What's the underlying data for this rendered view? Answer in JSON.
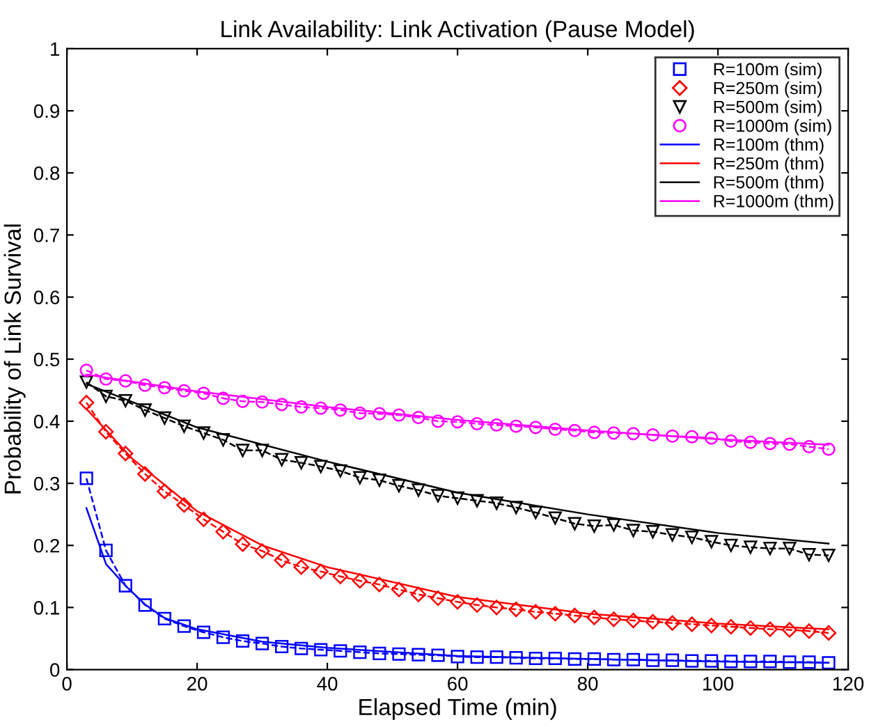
{
  "chart_data": {
    "type": "line",
    "title": "Link Availability: Link Activation (Pause Model)",
    "xlabel": "Elapsed Time (min)",
    "ylabel": "Probability of Link Survival",
    "xlim": [
      0,
      120
    ],
    "xticks": [
      0,
      20,
      40,
      60,
      80,
      100,
      120
    ],
    "ylim": [
      0,
      1
    ],
    "yticks": [
      0,
      0.1,
      0.2,
      0.3,
      0.4,
      0.5,
      0.6,
      0.7,
      0.8,
      0.9,
      1
    ],
    "grid": false,
    "legend": "top right",
    "series": [
      {
        "name": "R=100m (sim)",
        "color": "#0000ff",
        "marker": "square",
        "line_style": "dashed",
        "x": [
          3,
          6,
          9,
          12,
          15,
          18,
          21,
          24,
          27,
          30,
          33,
          36,
          39,
          42,
          45,
          48,
          51,
          54,
          57,
          60,
          63,
          66,
          69,
          72,
          75,
          78,
          81,
          84,
          87,
          90,
          93,
          96,
          99,
          102,
          105,
          108,
          111,
          114,
          117
        ],
        "values": [
          0.308,
          0.192,
          0.135,
          0.104,
          0.082,
          0.07,
          0.06,
          0.052,
          0.046,
          0.042,
          0.037,
          0.034,
          0.032,
          0.03,
          0.028,
          0.026,
          0.025,
          0.024,
          0.023,
          0.021,
          0.02,
          0.02,
          0.019,
          0.018,
          0.018,
          0.017,
          0.017,
          0.016,
          0.016,
          0.015,
          0.015,
          0.014,
          0.014,
          0.013,
          0.013,
          0.013,
          0.012,
          0.012,
          0.011
        ]
      },
      {
        "name": "R=250m (sim)",
        "color": "#ff0000",
        "marker": "diamond",
        "line_style": "dashed",
        "x": [
          3,
          6,
          9,
          12,
          15,
          18,
          21,
          24,
          27,
          30,
          33,
          36,
          39,
          42,
          45,
          48,
          51,
          54,
          57,
          60,
          63,
          66,
          69,
          72,
          75,
          78,
          81,
          84,
          87,
          90,
          93,
          96,
          99,
          102,
          105,
          108,
          111,
          114,
          117
        ],
        "values": [
          0.43,
          0.383,
          0.348,
          0.315,
          0.287,
          0.265,
          0.242,
          0.222,
          0.202,
          0.191,
          0.176,
          0.165,
          0.158,
          0.15,
          0.143,
          0.137,
          0.129,
          0.121,
          0.115,
          0.109,
          0.104,
          0.1,
          0.097,
          0.093,
          0.09,
          0.087,
          0.084,
          0.081,
          0.079,
          0.077,
          0.075,
          0.073,
          0.071,
          0.069,
          0.067,
          0.065,
          0.064,
          0.062,
          0.059
        ]
      },
      {
        "name": "R=500m (sim)",
        "color": "#000000",
        "marker": "triangle",
        "line_style": "dashed",
        "x": [
          3,
          6,
          9,
          12,
          15,
          18,
          21,
          24,
          27,
          30,
          33,
          36,
          39,
          42,
          45,
          48,
          51,
          54,
          57,
          60,
          63,
          66,
          69,
          72,
          75,
          78,
          81,
          84,
          87,
          90,
          93,
          96,
          99,
          102,
          105,
          108,
          111,
          114,
          117
        ],
        "values": [
          0.463,
          0.44,
          0.433,
          0.418,
          0.405,
          0.392,
          0.381,
          0.37,
          0.353,
          0.353,
          0.338,
          0.333,
          0.327,
          0.32,
          0.309,
          0.305,
          0.296,
          0.289,
          0.28,
          0.276,
          0.272,
          0.268,
          0.261,
          0.253,
          0.244,
          0.235,
          0.231,
          0.233,
          0.224,
          0.222,
          0.217,
          0.213,
          0.206,
          0.2,
          0.197,
          0.195,
          0.195,
          0.185,
          0.184
        ]
      },
      {
        "name": "R=1000m (sim)",
        "color": "#ff00ff",
        "marker": "circle",
        "line_style": "dashed",
        "x": [
          3,
          6,
          9,
          12,
          15,
          18,
          21,
          24,
          27,
          30,
          33,
          36,
          39,
          42,
          45,
          48,
          51,
          54,
          57,
          60,
          63,
          66,
          69,
          72,
          75,
          78,
          81,
          84,
          87,
          90,
          93,
          96,
          99,
          102,
          105,
          108,
          111,
          114,
          117
        ],
        "values": [
          0.482,
          0.468,
          0.465,
          0.458,
          0.454,
          0.449,
          0.445,
          0.437,
          0.432,
          0.431,
          0.427,
          0.423,
          0.421,
          0.418,
          0.413,
          0.412,
          0.41,
          0.406,
          0.4,
          0.399,
          0.396,
          0.394,
          0.392,
          0.39,
          0.387,
          0.385,
          0.382,
          0.381,
          0.38,
          0.378,
          0.376,
          0.375,
          0.373,
          0.368,
          0.366,
          0.364,
          0.363,
          0.359,
          0.355
        ]
      },
      {
        "name": "R=100m (thm)",
        "color": "#0000ff",
        "marker": "none",
        "line_style": "solid",
        "x": [
          3,
          6,
          9,
          12,
          15,
          20,
          30,
          40,
          60,
          80,
          100,
          117
        ],
        "values": [
          0.26,
          0.17,
          0.135,
          0.105,
          0.083,
          0.065,
          0.045,
          0.035,
          0.022,
          0.017,
          0.013,
          0.011
        ]
      },
      {
        "name": "R=250m (thm)",
        "color": "#ff0000",
        "marker": "none",
        "line_style": "solid",
        "x": [
          3,
          10,
          20,
          30,
          40,
          60,
          80,
          100,
          117
        ],
        "values": [
          0.42,
          0.34,
          0.255,
          0.2,
          0.165,
          0.117,
          0.09,
          0.074,
          0.065
        ]
      },
      {
        "name": "R=500m (thm)",
        "color": "#000000",
        "marker": "none",
        "line_style": "solid",
        "x": [
          3,
          20,
          40,
          60,
          80,
          100,
          117
        ],
        "values": [
          0.46,
          0.39,
          0.335,
          0.285,
          0.25,
          0.22,
          0.203
        ]
      },
      {
        "name": "R=1000m (thm)",
        "color": "#ff00ff",
        "marker": "none",
        "line_style": "solid",
        "x": [
          3,
          20,
          40,
          60,
          80,
          100,
          117
        ],
        "values": [
          0.475,
          0.448,
          0.423,
          0.402,
          0.385,
          0.371,
          0.362
        ]
      }
    ]
  }
}
